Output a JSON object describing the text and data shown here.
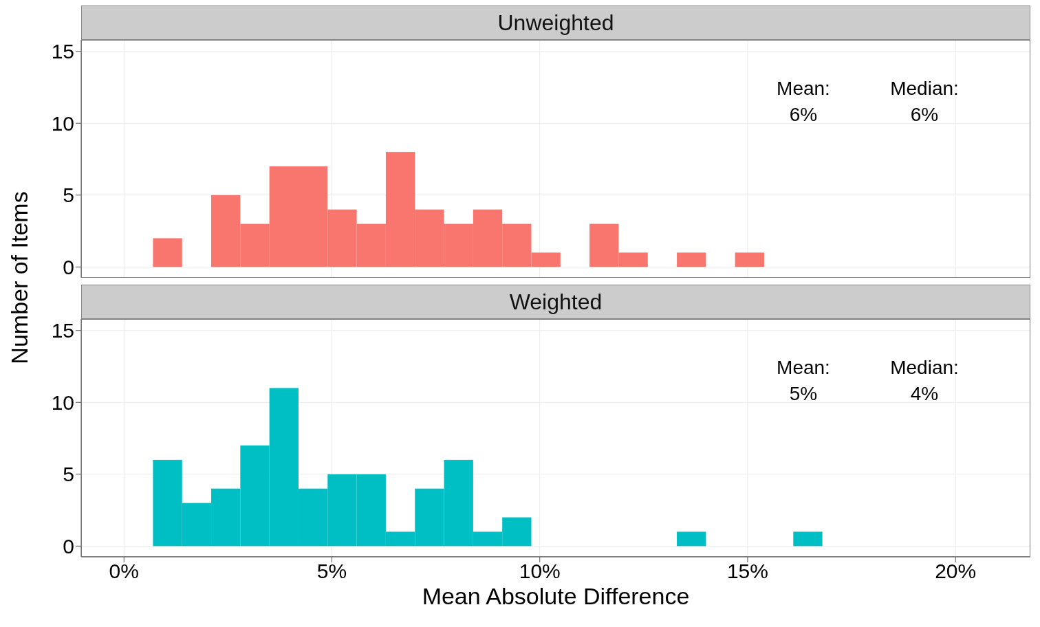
{
  "chart_data": [
    {
      "type": "histogram",
      "title": "Unweighted",
      "ylabel": "Number of Items",
      "bins": [
        0.7,
        1.4,
        2.1,
        2.8,
        3.5,
        4.2,
        4.9,
        5.6,
        6.3,
        7.0,
        7.7,
        8.4,
        9.1,
        9.8,
        10.5,
        11.2,
        11.9,
        12.6,
        13.3,
        14.0,
        14.7,
        15.4
      ],
      "values": [
        2,
        0,
        5,
        3,
        7,
        7,
        4,
        3,
        8,
        4,
        3,
        4,
        3,
        1,
        0,
        3,
        1,
        0,
        1,
        0,
        1
      ],
      "color": "#f8766d",
      "xlim": [
        -1.03,
        21.8
      ],
      "xticks": [
        0,
        5,
        10,
        15,
        20
      ],
      "ylim": [
        -0.75,
        15.8
      ],
      "yticks": [
        0,
        5,
        10,
        15
      ],
      "grid": true,
      "tick_labels": "y",
      "annotations": [
        "Mean:\n6%",
        "Median:\n6%"
      ]
    },
    {
      "type": "histogram",
      "title": "Weighted",
      "xlabel": "Mean Absolute Difference",
      "bins": [
        0.7,
        1.4,
        2.1,
        2.8,
        3.5,
        4.2,
        4.9,
        5.6,
        6.3,
        7.0,
        7.7,
        8.4,
        9.1,
        9.8,
        10.5,
        11.2,
        11.9,
        12.6,
        13.3,
        14.0,
        14.7,
        15.4,
        16.1,
        16.8
      ],
      "values": [
        6,
        3,
        4,
        7,
        11,
        4,
        5,
        5,
        1,
        4,
        6,
        1,
        2,
        0,
        0,
        0,
        0,
        0,
        1,
        0,
        0,
        0,
        1
      ],
      "color": "#00bfc4",
      "xlim": [
        -1.03,
        21.8
      ],
      "xticks": [
        {
          "value": 0,
          "label": "0%"
        },
        {
          "value": 5,
          "label": "5%"
        },
        {
          "value": 10,
          "label": "10%"
        },
        {
          "value": 15,
          "label": "15%"
        },
        {
          "value": 20,
          "label": "20%"
        }
      ],
      "ylim": [
        -0.75,
        15.8
      ],
      "yticks": [
        0,
        5,
        10,
        15
      ],
      "grid": true,
      "annotations": [
        "Mean:\n5%",
        "Median:\n4%"
      ]
    }
  ]
}
